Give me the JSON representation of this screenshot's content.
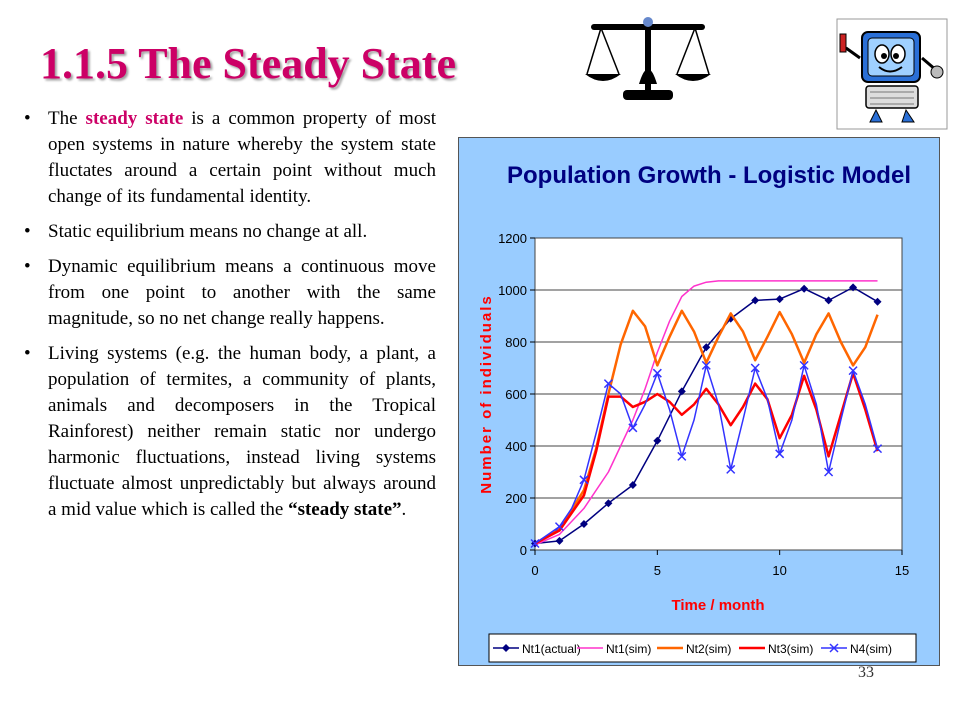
{
  "slide": {
    "title": "1.1.5 The Steady State",
    "page_number": "33",
    "icons": [
      "scales-icon",
      "cartoon-computer-icon"
    ],
    "bullets": [
      {
        "pre": "The ",
        "highlight": "steady state",
        "post": " is a common property of most open systems in nature whereby the system state fluctates around a certain point without much change of its fundamental identity."
      },
      {
        "text": "Static equilibrium means no change at all."
      },
      {
        "text": "Dynamic equilibrium means a continuous move from one point to another with the same magnitude, so no net change really happens."
      },
      {
        "pre": "Living systems (e.g. the human body, a plant, a population of termites, a community of plants, animals and decomposers in the Tropical Rainforest) neither remain static nor undergo harmonic fluctuations, instead living systems fluctuate almost unpredictably but always around a mid value which is called the ",
        "bold": "“steady state”",
        "post": "."
      }
    ]
  },
  "colors": {
    "title": "#cc0066",
    "highlight": "#cc0066",
    "chart_background": "#99ccff",
    "chart_title": "#000080",
    "axis_label": "#ff0000",
    "plot_area": "#ffffff"
  },
  "chart_data": {
    "type": "line",
    "title": "Population Growth - Logistic Model",
    "xlabel": "Time / month",
    "ylabel": "Number of individuals",
    "xlim": [
      0,
      15
    ],
    "ylim": [
      0,
      1200
    ],
    "xticks": [
      0,
      5,
      10,
      15
    ],
    "yticks": [
      0,
      200,
      400,
      600,
      800,
      1000,
      1200
    ],
    "grid": "horizontal",
    "legend_position": "bottom",
    "series": [
      {
        "name": "Nt1(actual)",
        "color": "#000080",
        "marker": "diamond",
        "x": [
          0,
          1,
          2,
          3,
          4,
          5,
          6,
          7,
          8,
          9,
          10,
          11,
          12,
          13,
          14
        ],
        "y": [
          25,
          35,
          100,
          180,
          250,
          420,
          610,
          780,
          890,
          960,
          965,
          1005,
          960,
          1010,
          955
        ]
      },
      {
        "name": "Nt1(sim)",
        "color": "#ff33cc",
        "marker": "none",
        "x": [
          0,
          1,
          2,
          3,
          4,
          4.5,
          5,
          5.5,
          6,
          6.5,
          7,
          7.5,
          8,
          9,
          10,
          11,
          12,
          13,
          14
        ],
        "y": [
          20,
          60,
          160,
          300,
          500,
          620,
          760,
          880,
          975,
          1015,
          1030,
          1035,
          1035,
          1035,
          1035,
          1035,
          1035,
          1035,
          1035
        ]
      },
      {
        "name": "Nt2(sim)",
        "color": "#ff6600",
        "marker": "none",
        "x": [
          0,
          1,
          2,
          2.5,
          3,
          3.5,
          4,
          4.5,
          5,
          5.5,
          6,
          6.5,
          7,
          7.5,
          8,
          8.5,
          9,
          9.5,
          10,
          10.5,
          11,
          11.5,
          12,
          12.5,
          13,
          13.5,
          14
        ],
        "y": [
          25,
          80,
          230,
          390,
          600,
          790,
          920,
          860,
          710,
          820,
          920,
          840,
          720,
          820,
          910,
          840,
          730,
          820,
          915,
          830,
          720,
          830,
          910,
          800,
          710,
          780,
          905
        ]
      },
      {
        "name": "Nt3(sim)",
        "color": "#ff0000",
        "marker": "none",
        "x": [
          0,
          1,
          2,
          2.5,
          3,
          3.5,
          4,
          4.5,
          5,
          5.5,
          6,
          6.5,
          7,
          7.5,
          8,
          8.5,
          9,
          9.5,
          10,
          10.5,
          11,
          11.5,
          12,
          12.5,
          13,
          13.5,
          14
        ],
        "y": [
          25,
          75,
          210,
          380,
          590,
          590,
          550,
          570,
          600,
          570,
          520,
          560,
          620,
          560,
          480,
          550,
          640,
          580,
          430,
          520,
          670,
          540,
          360,
          520,
          680,
          540,
          380
        ]
      },
      {
        "name": "N4(sim)",
        "color": "#3333ff",
        "marker": "x",
        "x": [
          0,
          1,
          1.5,
          2,
          2.5,
          3,
          3.5,
          4,
          4.5,
          5,
          5.5,
          6,
          6.5,
          7,
          7.5,
          8,
          8.5,
          9,
          9.5,
          10,
          10.5,
          11,
          11.5,
          12,
          12.5,
          13,
          13.5,
          14
        ],
        "y": [
          25,
          90,
          160,
          270,
          450,
          640,
          600,
          470,
          560,
          680,
          540,
          360,
          500,
          710,
          560,
          310,
          500,
          700,
          580,
          370,
          500,
          710,
          560,
          300,
          500,
          690,
          560,
          390
        ]
      }
    ]
  }
}
